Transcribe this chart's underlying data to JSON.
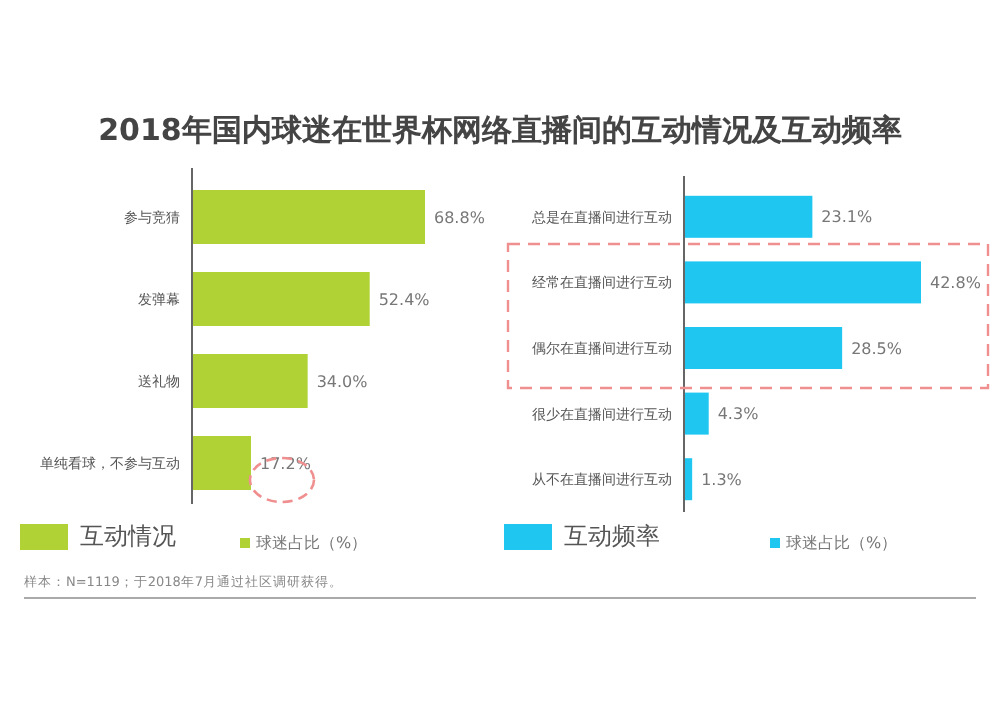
{
  "chart_data": [
    {
      "type": "bar",
      "orientation": "horizontal",
      "title": "2018年国内球迷在世界杯网络直播间的互动情况及互动频率",
      "legend_title": "互动情况",
      "legend": "bottom",
      "categories": [
        "参与竞猜",
        "发弹幕",
        "送礼物",
        "单纯看球，不参与互动"
      ],
      "series": [
        {
          "name": "球迷占比（%）",
          "color": "#b0d235",
          "values": [
            68.8,
            52.4,
            34.0,
            17.2
          ],
          "value_labels": [
            "68.8%",
            "52.4%",
            "34.0%",
            "17.2%"
          ]
        }
      ]
    },
    {
      "type": "bar",
      "orientation": "horizontal",
      "legend_title": "互动频率",
      "legend": "bottom",
      "categories": [
        "总是在直播间进行互动",
        "经常在直播间进行互动",
        "偶尔在直播间进行互动",
        "很少在直播间进行互动",
        "从不在直播间进行互动"
      ],
      "series": [
        {
          "name": "球迷占比（%）",
          "color": "#1fc6f0",
          "values": [
            23.1,
            42.8,
            28.5,
            4.3,
            1.3
          ],
          "value_labels": [
            "23.1%",
            "42.8%",
            "28.5%",
            "4.3%",
            "1.3%"
          ]
        }
      ],
      "annotations": [
        "样本：N=1119；于2018年7月通过社区调研获得。"
      ]
    }
  ]
}
